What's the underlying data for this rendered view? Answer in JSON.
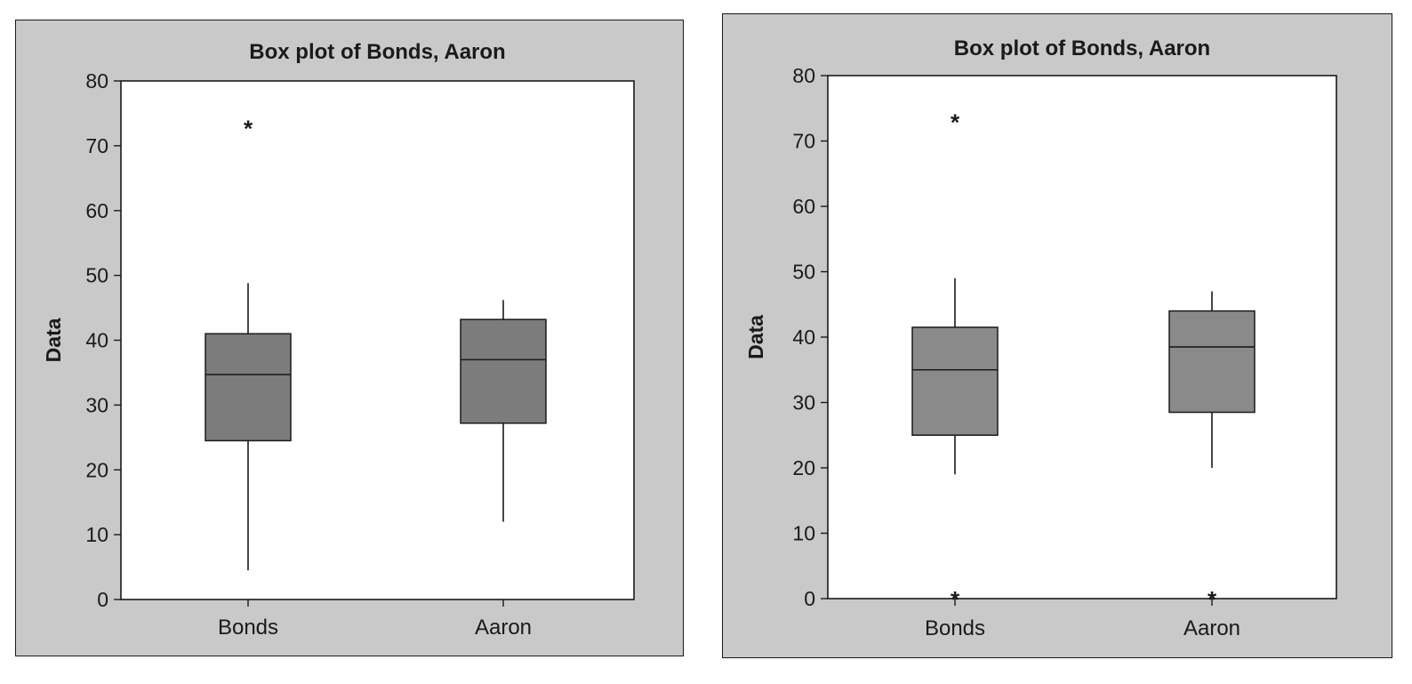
{
  "chart_data": [
    {
      "type": "box",
      "title": "Box plot of Bonds, Aaron",
      "xlabel": "",
      "ylabel": "Data",
      "ylim": [
        0,
        80
      ],
      "yticks": [
        0,
        10,
        20,
        30,
        40,
        50,
        60,
        70,
        80
      ],
      "categories": [
        "Bonds",
        "Aaron"
      ],
      "boxes": [
        {
          "category": "Bonds",
          "whisker_low": 4.5,
          "q1": 24.5,
          "median": 34.7,
          "q3": 41.0,
          "whisker_high": 48.8,
          "outliers": [
            72.8
          ],
          "full_fill_from_median": true
        },
        {
          "category": "Aaron",
          "whisker_low": 12.0,
          "q1": 27.2,
          "median": 37.0,
          "q3": 43.2,
          "whisker_high": 46.2,
          "outliers": [],
          "full_fill_to_median": true
        }
      ],
      "box_color": "#7c7c7c",
      "outlier_marker": "*"
    },
    {
      "type": "box",
      "title": "Box plot of Bonds, Aaron",
      "xlabel": "",
      "ylabel": "Data",
      "ylim": [
        0,
        80
      ],
      "yticks": [
        0,
        10,
        20,
        30,
        40,
        50,
        60,
        70,
        80
      ],
      "categories": [
        "Bonds",
        "Aaron"
      ],
      "boxes": [
        {
          "category": "Bonds",
          "whisker_low": 19.0,
          "q1": 25.0,
          "median": 35.0,
          "q3": 41.5,
          "whisker_high": 49.0,
          "outliers": [
            73.0,
            0.0
          ]
        },
        {
          "category": "Aaron",
          "whisker_low": 20.0,
          "q1": 28.5,
          "median": 38.5,
          "q3": 44.0,
          "whisker_high": 47.0,
          "outliers": [
            0.0
          ]
        }
      ],
      "box_color": "#8a8a8a",
      "outlier_marker": "*"
    }
  ]
}
